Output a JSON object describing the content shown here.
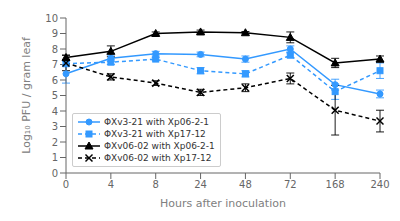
{
  "chart_data": {
    "type": "line",
    "categories": [
      "0",
      "4",
      "8",
      "24",
      "48",
      "72",
      "168",
      "240"
    ],
    "xlabel": "Hours after inoculation",
    "ylabel": "Log₁₀ PFU / gram leaf",
    "ylim": [
      0,
      10
    ],
    "yticks": [
      0,
      1,
      2,
      3,
      4,
      5,
      6,
      7,
      8,
      9,
      10
    ],
    "grid": false,
    "legend": "lower left",
    "series": [
      {
        "name": "ΦXv3-21 with Xp06-2-1",
        "color": "#3399FF",
        "marker": "circle",
        "line_style": "solid",
        "values": [
          6.4,
          7.4,
          7.7,
          7.65,
          7.35,
          8.0,
          5.7,
          5.1
        ],
        "errors": [
          0.6,
          0.2,
          0.15,
          0.15,
          0.2,
          0.2,
          0.35,
          0.25
        ]
      },
      {
        "name": "ΦXv3-21 with Xp17-12",
        "color": "#3399FF",
        "marker": "square",
        "line_style": "dashed",
        "values": [
          7.05,
          7.15,
          7.35,
          6.6,
          6.4,
          7.6,
          5.25,
          6.6
        ],
        "errors": [
          0.15,
          0.15,
          0.1,
          0.2,
          0.2,
          0.15,
          0.5,
          0.5
        ]
      },
      {
        "name": "ΦXv06-02 with Xp06-2-1",
        "color": "#000000",
        "marker": "triangle",
        "line_style": "solid",
        "values": [
          7.45,
          7.85,
          9.0,
          9.1,
          9.05,
          8.75,
          7.1,
          7.35
        ],
        "errors": [
          0.15,
          0.35,
          0.1,
          0.12,
          0.08,
          0.35,
          0.3,
          0.2
        ]
      },
      {
        "name": "ΦXv06-02 with Xp17-12",
        "color": "#000000",
        "marker": "x",
        "line_style": "dashed",
        "values": [
          7.1,
          6.2,
          5.8,
          5.2,
          5.5,
          6.1,
          4.05,
          3.35
        ],
        "errors": [
          0.5,
          0.2,
          0.15,
          0.2,
          0.25,
          0.35,
          1.6,
          0.7
        ]
      }
    ]
  }
}
